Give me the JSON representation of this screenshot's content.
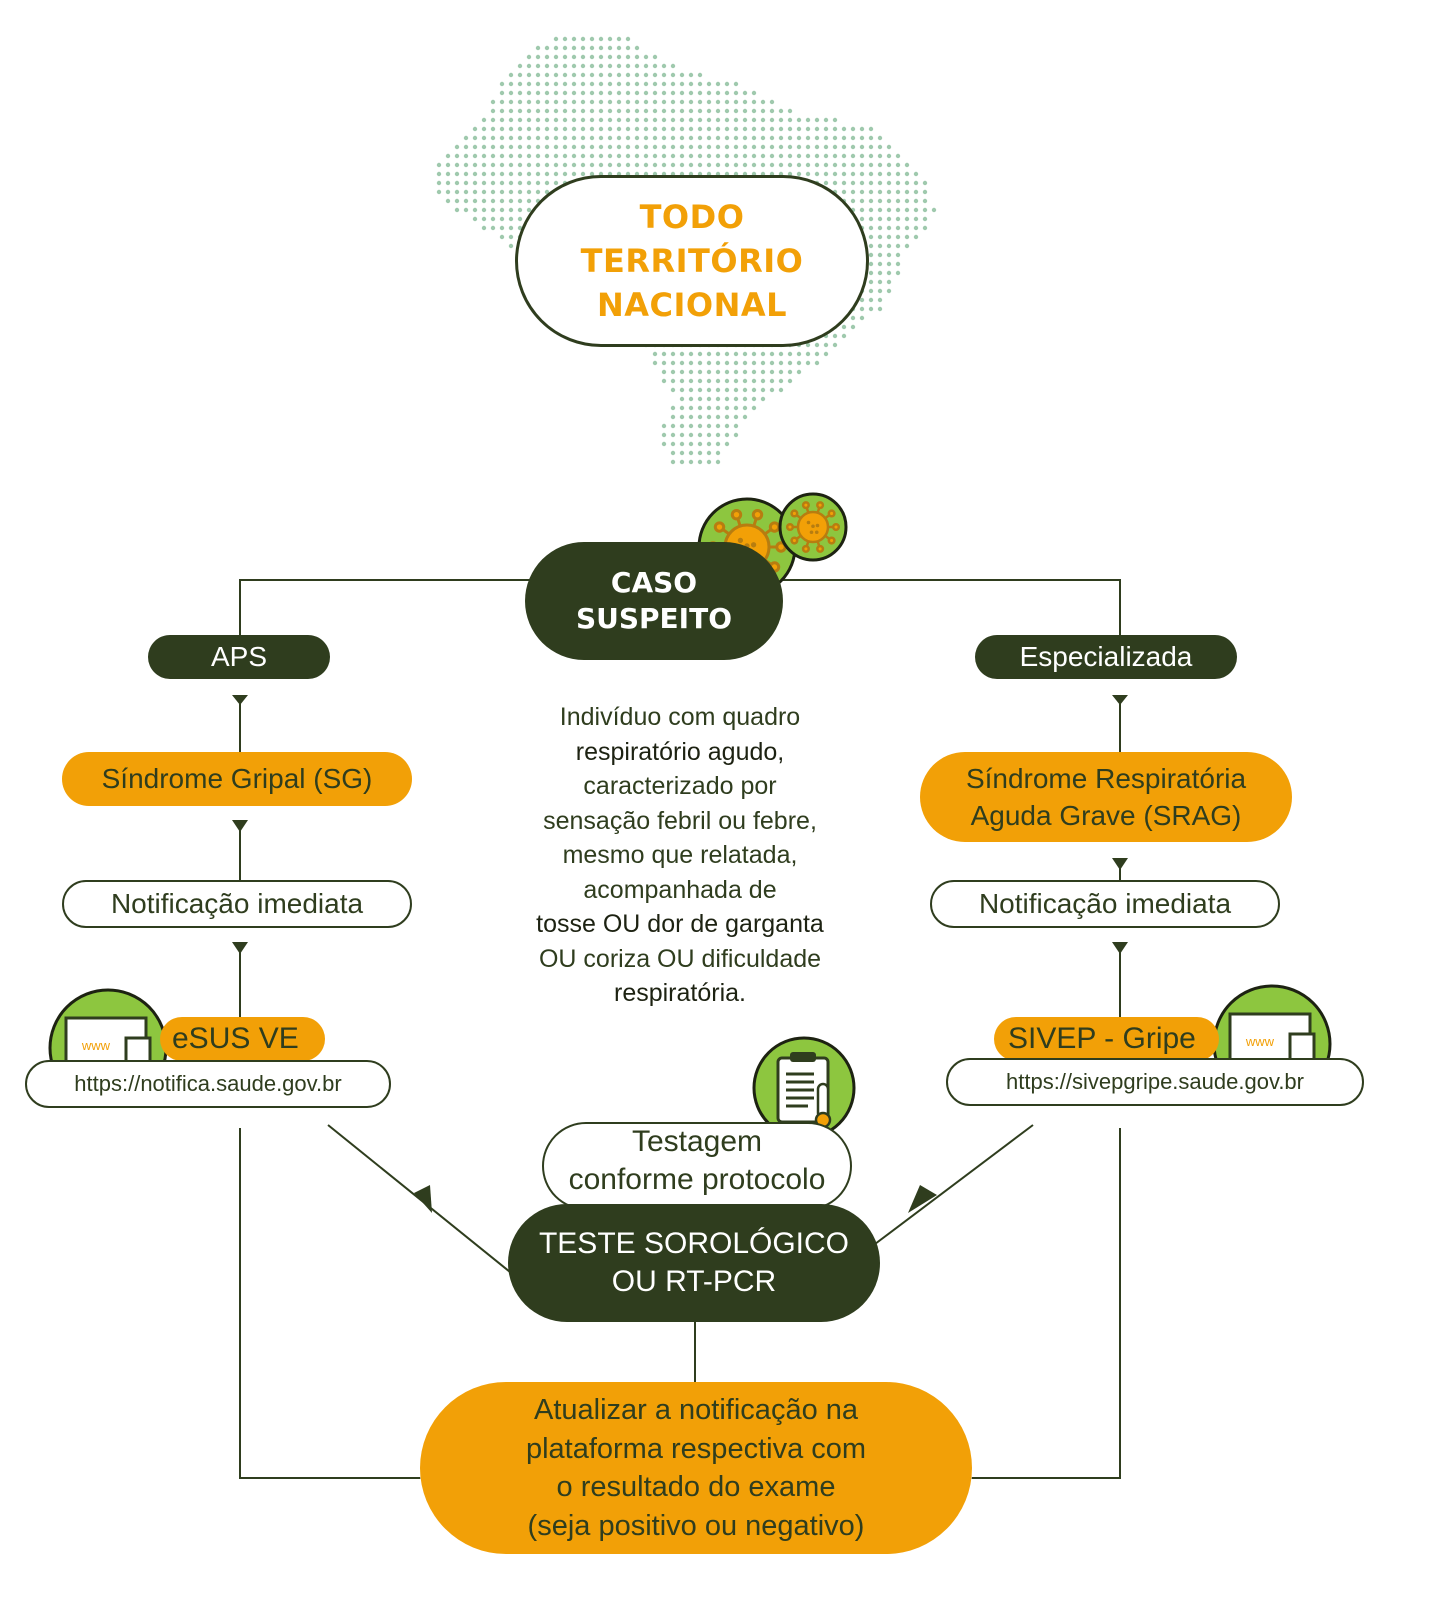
{
  "title": [
    "TODO",
    "TERRITÓRIO",
    "NACIONAL"
  ],
  "caso": [
    "CASO",
    "SUSPEITO"
  ],
  "description": {
    "l1": "Indivíduo com quadro",
    "l2": "respiratório agudo,",
    "l3": "caracterizado por",
    "l4": "sensação febril ou febre,",
    "l5": "mesmo que relatada,",
    "l6": "acompanhada de",
    "l7": "tosse OU dor de garganta",
    "l8": "OU coriza OU dificuldade",
    "l9": "respiratória."
  },
  "left": {
    "branch": "APS",
    "syndrome": "Síndrome Gripal (SG)",
    "notification": "Notificação imediata",
    "system": "eSUS VE",
    "url": "https://notifica.saude.gov.br"
  },
  "right": {
    "branch": "Especializada",
    "syndrome": [
      "Síndrome Respiratória",
      "Aguda Grave (SRAG)"
    ],
    "notification": "Notificação imediata",
    "system": "SIVEP - Gripe",
    "url": "https://sivepgripe.saude.gov.br"
  },
  "testing": [
    "Testagem",
    "conforme protocolo"
  ],
  "test_type": [
    "TESTE SOROLÓGICO",
    "OU RT-PCR"
  ],
  "update": [
    "Atualizar a notificação na",
    "plataforma respectiva com",
    "o resultado do exame",
    "(seja positivo ou negativo)"
  ],
  "icons": {
    "www_label": "www",
    "map": "brazil-dotted-map-icon",
    "virus": "virus-icon",
    "computer": "computer-www-icon",
    "clipboard": "clipboard-thermometer-icon"
  },
  "colors": {
    "dark_green": "#2f3d1e",
    "orange": "#f2a007",
    "light_green": "#8dc63f",
    "map_dots": "#9fc9ad"
  }
}
